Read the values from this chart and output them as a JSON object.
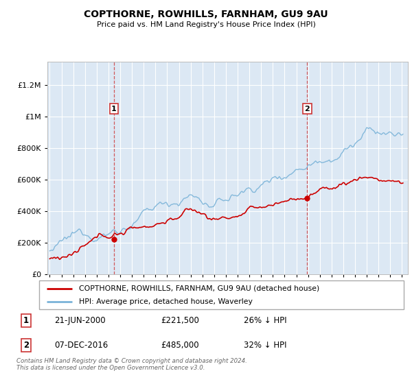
{
  "title": "COPTHORNE, ROWHILLS, FARNHAM, GU9 9AU",
  "subtitle": "Price paid vs. HM Land Registry's House Price Index (HPI)",
  "ytick_values": [
    0,
    200000,
    400000,
    600000,
    800000,
    1000000,
    1200000
  ],
  "ylim": [
    0,
    1350000
  ],
  "xlim_start": 1994.8,
  "xlim_end": 2025.5,
  "hpi_color": "#7ab3d8",
  "price_color": "#cc0000",
  "marker1_year": 2000.47,
  "marker1_price": 221500,
  "marker2_year": 2016.93,
  "marker2_price": 485000,
  "vline1_x": 2000.47,
  "vline2_x": 2016.93,
  "legend_entry1": "COPTHORNE, ROWHILLS, FARNHAM, GU9 9AU (detached house)",
  "legend_entry2": "HPI: Average price, detached house, Waverley",
  "table_row1_num": "1",
  "table_row1_date": "21-JUN-2000",
  "table_row1_price": "£221,500",
  "table_row1_pct": "26% ↓ HPI",
  "table_row2_num": "2",
  "table_row2_date": "07-DEC-2016",
  "table_row2_price": "£485,000",
  "table_row2_pct": "32% ↓ HPI",
  "footnote": "Contains HM Land Registry data © Crown copyright and database right 2024.\nThis data is licensed under the Open Government Licence v3.0.",
  "plot_bg_color": "#dce8f4"
}
